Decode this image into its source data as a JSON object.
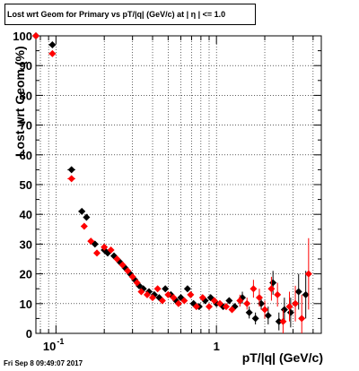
{
  "title": "Lost wrt Geom for Primary vs pT/|q| (GeV/c) at | η | <= 1.0",
  "footer": "Fri Sep  8 09:49:07 2017",
  "chart_data": {
    "type": "scatter",
    "xlabel": "pT/|q| (GeV/c)",
    "ylabel": "Lost wrt Geom (%)",
    "xscale": "log",
    "xlim": [
      0.075,
      4.5
    ],
    "ylim": [
      0,
      100
    ],
    "yticks": [
      0,
      10,
      20,
      30,
      40,
      50,
      60,
      70,
      80,
      90,
      100
    ],
    "xtick_labels": [
      {
        "value": 0.1,
        "label": "10",
        "exp": "-1"
      },
      {
        "value": 1,
        "label": "1",
        "exp": ""
      }
    ],
    "grid": true,
    "series": [
      {
        "color": "#000000",
        "points": [
          [
            0.075,
            100,
            0,
            0
          ],
          [
            0.095,
            97,
            0.005,
            0
          ],
          [
            0.125,
            55,
            0.007,
            0
          ],
          [
            0.145,
            41,
            0.007,
            0
          ],
          [
            0.155,
            39,
            0.006,
            0
          ],
          [
            0.175,
            30,
            0.006,
            0
          ],
          [
            0.2,
            28,
            0.006,
            0
          ],
          [
            0.21,
            27,
            0.006,
            0
          ],
          [
            0.23,
            26,
            0.006,
            0
          ],
          [
            0.25,
            24,
            0.006,
            0
          ],
          [
            0.27,
            22,
            0.006,
            0
          ],
          [
            0.29,
            20,
            0.006,
            0
          ],
          [
            0.31,
            18,
            0.006,
            0
          ],
          [
            0.33,
            16,
            0.006,
            0
          ],
          [
            0.35,
            15,
            0.006,
            0
          ],
          [
            0.38,
            14,
            0.006,
            0
          ],
          [
            0.41,
            13,
            0.006,
            0
          ],
          [
            0.44,
            12,
            0.006,
            0
          ],
          [
            0.48,
            15,
            0.007,
            0
          ],
          [
            0.52,
            13,
            0.007,
            0
          ],
          [
            0.56,
            11,
            0.007,
            0
          ],
          [
            0.6,
            12,
            0.007,
            0
          ],
          [
            0.66,
            15,
            0.008,
            0
          ],
          [
            0.72,
            10,
            0.008,
            0
          ],
          [
            0.78,
            9,
            0.009,
            0
          ],
          [
            0.85,
            11,
            0.009,
            0
          ],
          [
            0.92,
            12,
            0.01,
            0
          ],
          [
            1.0,
            10,
            0.01,
            0
          ],
          [
            1.1,
            9,
            0.01,
            1
          ],
          [
            1.2,
            11,
            0.012,
            1
          ],
          [
            1.3,
            9,
            0.012,
            1
          ],
          [
            1.45,
            12,
            0.014,
            2
          ],
          [
            1.6,
            7,
            0.015,
            2
          ],
          [
            1.75,
            5,
            0.015,
            2
          ],
          [
            1.9,
            10,
            0.016,
            2
          ],
          [
            2.1,
            6,
            0.02,
            3
          ],
          [
            2.25,
            17,
            0.02,
            4
          ],
          [
            2.45,
            4,
            0.025,
            3
          ],
          [
            2.65,
            8,
            0.025,
            4
          ],
          [
            2.9,
            7,
            0.03,
            5
          ],
          [
            3.25,
            14,
            0.03,
            6
          ],
          [
            3.6,
            13,
            0.04,
            8
          ]
        ]
      },
      {
        "color": "#ff0000",
        "points": [
          [
            0.075,
            100,
            0,
            0
          ],
          [
            0.095,
            94,
            0.005,
            0
          ],
          [
            0.125,
            52,
            0.007,
            0
          ],
          [
            0.15,
            36,
            0.007,
            0
          ],
          [
            0.165,
            31,
            0.006,
            0
          ],
          [
            0.18,
            27,
            0.006,
            0
          ],
          [
            0.2,
            29,
            0.006,
            0
          ],
          [
            0.22,
            28,
            0.006,
            0
          ],
          [
            0.24,
            25,
            0.006,
            0
          ],
          [
            0.26,
            23,
            0.006,
            0
          ],
          [
            0.28,
            21,
            0.006,
            0
          ],
          [
            0.3,
            19,
            0.006,
            0
          ],
          [
            0.32,
            17,
            0.006,
            0
          ],
          [
            0.34,
            14,
            0.006,
            0
          ],
          [
            0.37,
            13,
            0.006,
            0
          ],
          [
            0.4,
            12,
            0.006,
            0
          ],
          [
            0.43,
            15,
            0.006,
            0
          ],
          [
            0.46,
            11,
            0.007,
            0
          ],
          [
            0.5,
            13,
            0.007,
            0
          ],
          [
            0.54,
            12,
            0.007,
            0
          ],
          [
            0.58,
            10,
            0.007,
            0
          ],
          [
            0.63,
            11,
            0.008,
            0
          ],
          [
            0.69,
            13,
            0.008,
            0
          ],
          [
            0.75,
            9,
            0.008,
            0
          ],
          [
            0.82,
            12,
            0.009,
            0
          ],
          [
            0.9,
            9,
            0.01,
            0
          ],
          [
            0.97,
            11,
            0.01,
            1
          ],
          [
            1.05,
            10,
            0.01,
            1
          ],
          [
            1.15,
            9,
            0.011,
            1
          ],
          [
            1.25,
            8,
            0.012,
            1
          ],
          [
            1.4,
            11,
            0.014,
            2
          ],
          [
            1.55,
            10,
            0.015,
            2
          ],
          [
            1.7,
            15,
            0.015,
            3
          ],
          [
            1.85,
            12,
            0.016,
            3
          ],
          [
            2.0,
            8,
            0.02,
            3
          ],
          [
            2.2,
            15,
            0.02,
            4
          ],
          [
            2.4,
            13,
            0.025,
            4
          ],
          [
            2.6,
            4,
            0.025,
            4
          ],
          [
            2.85,
            9,
            0.03,
            5
          ],
          [
            3.1,
            10,
            0.03,
            6
          ],
          [
            3.4,
            5,
            0.04,
            8
          ],
          [
            3.75,
            20,
            0.04,
            12
          ]
        ]
      }
    ]
  }
}
